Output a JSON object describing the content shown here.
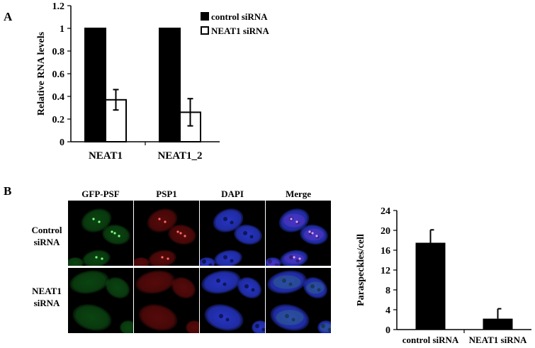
{
  "panels": {
    "a_label": "A",
    "b_label": "B"
  },
  "chart_data": [
    {
      "type": "bar",
      "ylabel": "Relative RNA levels",
      "categories": [
        "NEAT1",
        "NEAT1_2"
      ],
      "ylim": [
        0,
        1.2
      ],
      "yticks": [
        0,
        0.2,
        0.4,
        0.6,
        0.8,
        1,
        1.2
      ],
      "ytick_labels": [
        "0",
        "0.2",
        "0.4",
        "0.6",
        "0.8",
        "1",
        "1.2"
      ],
      "legend_position": "top-right",
      "series": [
        {
          "name": "control siRNA",
          "values": [
            1.0,
            1.0
          ],
          "errors": [
            0,
            0
          ],
          "color": "#000000"
        },
        {
          "name": "NEAT1 siRNA",
          "values": [
            0.37,
            0.26
          ],
          "errors": [
            0.09,
            0.12
          ],
          "color": "#ffffff"
        }
      ]
    },
    {
      "type": "bar",
      "ylabel": "Paraspeckles/cell",
      "categories": [
        "control siRNA",
        "NEAT1 siRNA"
      ],
      "ylim": [
        0,
        24
      ],
      "yticks": [
        0,
        4,
        8,
        12,
        16,
        20,
        24
      ],
      "ytick_labels": [
        "0",
        "4",
        "8",
        "12",
        "16",
        "20",
        "24"
      ],
      "series": [
        {
          "values": [
            17.5,
            2.2
          ],
          "errors": [
            2.6,
            2.0
          ],
          "color": "#000000"
        }
      ]
    }
  ],
  "micrographs": {
    "columns": [
      "GFP-PSF",
      "PSP1",
      "DAPI",
      "Merge"
    ],
    "rows": [
      {
        "label_line1": "Control",
        "label_line2": "siRNA"
      },
      {
        "label_line1": "NEAT1",
        "label_line2": "siRNA"
      }
    ],
    "channel_colors": {
      "gfp": "#1aa82a",
      "psp1": "#d41818",
      "dapi": "#2a3ad8"
    }
  }
}
